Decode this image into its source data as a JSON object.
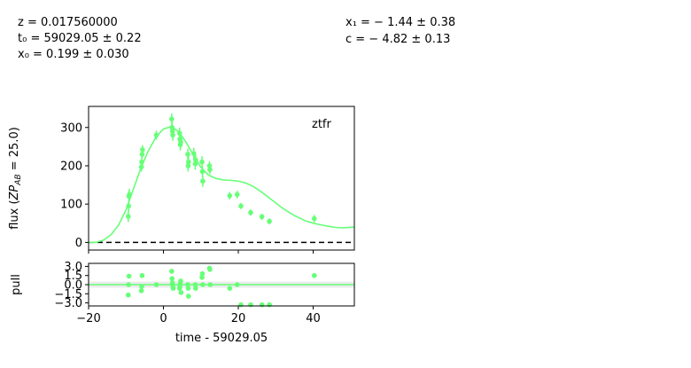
{
  "params": {
    "z": "z = 0.017560000",
    "t0": "t₀ = 59029.05 ± 0.22",
    "x0": "x₀ = 0.199 ± 0.030",
    "x1": "x₁ = − 1.44 ± 0.38",
    "c": "c = − 4.82 ± 0.13"
  },
  "chart_data": [
    {
      "type": "scatter",
      "title": "",
      "legend": "ztfr",
      "legend_placement": "top-right",
      "xlabel": "",
      "ylabel": "flux (ZP_AB = 25.0)",
      "xlim": [
        -20,
        51
      ],
      "ylim": [
        -20,
        355
      ],
      "yticks": [
        "0",
        "100",
        "200",
        "300"
      ],
      "color": "#66ff77",
      "zero_line": "dashed",
      "series": [
        {
          "kind": "points",
          "x": [
            -9.4,
            -9.3,
            -9.2,
            -9.1,
            -5.9,
            -5.8,
            -5.7,
            -5.6,
            -1.9,
            2.2,
            2.3,
            2.4,
            2.5,
            4.3,
            4.4,
            4.5,
            4.6,
            6.5,
            6.6,
            6.7,
            8.1,
            8.5,
            8.6,
            10.3,
            10.4,
            10.5,
            12.3,
            12.4,
            17.7,
            19.7,
            20.7,
            23.3,
            26.3,
            28.3,
            40.3
          ],
          "y": [
            68,
            95,
            120,
            125,
            197,
            210,
            230,
            242,
            280,
            322,
            300,
            290,
            280,
            285,
            270,
            255,
            262,
            230,
            200,
            210,
            232,
            205,
            215,
            210,
            185,
            160,
            200,
            190,
            122,
            125,
            95,
            78,
            67,
            55,
            62
          ],
          "yerr": [
            15,
            15,
            15,
            15,
            12,
            12,
            12,
            12,
            12,
            15,
            15,
            15,
            15,
            15,
            15,
            15,
            15,
            15,
            15,
            15,
            15,
            15,
            15,
            15,
            15,
            15,
            12,
            12,
            10,
            10,
            8,
            8,
            8,
            8,
            10
          ]
        },
        {
          "kind": "model",
          "x": [
            -20,
            -18,
            -16,
            -14,
            -12,
            -10,
            -8,
            -6,
            -4,
            -2,
            0,
            2,
            4,
            6,
            8,
            10,
            12,
            14,
            16,
            18,
            20,
            22,
            24,
            26,
            28,
            30,
            32,
            35,
            38,
            40,
            42,
            44,
            46,
            48,
            51
          ],
          "y": [
            0,
            0,
            6,
            20,
            45,
            85,
            140,
            195,
            240,
            275,
            296,
            302,
            290,
            262,
            228,
            196,
            176,
            167,
            163,
            162,
            160,
            155,
            146,
            133,
            118,
            103,
            88,
            70,
            56,
            50,
            46,
            42,
            39,
            38,
            40
          ]
        }
      ]
    },
    {
      "type": "scatter",
      "title": "",
      "xlabel": "time - 59029.05",
      "ylabel": "pull",
      "xlim": [
        -20,
        51
      ],
      "ylim": [
        -3.5,
        3.5
      ],
      "xticks": [
        "−20",
        "0",
        "20",
        "40"
      ],
      "yticks": [
        "3.0",
        "1.5",
        "0.0",
        "−1.5",
        "−3.0"
      ],
      "band": [
        -0.5,
        0.5
      ],
      "color": "#66ff77",
      "series": [
        {
          "kind": "points",
          "x": [
            -9.4,
            -9.3,
            -9.2,
            -5.9,
            -5.8,
            -5.7,
            -1.9,
            2.2,
            2.3,
            2.4,
            2.5,
            2.6,
            4.3,
            4.4,
            4.5,
            4.6,
            4.7,
            6.5,
            6.6,
            6.7,
            8.5,
            8.6,
            10.3,
            10.4,
            10.5,
            12.3,
            12.4,
            12.5,
            17.7,
            19.7,
            20.7,
            23.3,
            26.3,
            28.3,
            40.3
          ],
          "y": [
            -1.7,
            0.0,
            1.4,
            -1.0,
            -0.3,
            1.5,
            0.0,
            2.2,
            1.0,
            0.3,
            -0.3,
            -0.6,
            -0.6,
            -0.3,
            0.3,
            0.6,
            -1.3,
            0.0,
            -0.6,
            -1.9,
            0.0,
            -0.6,
            1.2,
            1.8,
            0.0,
            2.7,
            2.5,
            0.0,
            -0.6,
            0.0,
            -3.3,
            -3.3,
            -3.3,
            -3.3,
            1.5
          ]
        }
      ]
    }
  ]
}
